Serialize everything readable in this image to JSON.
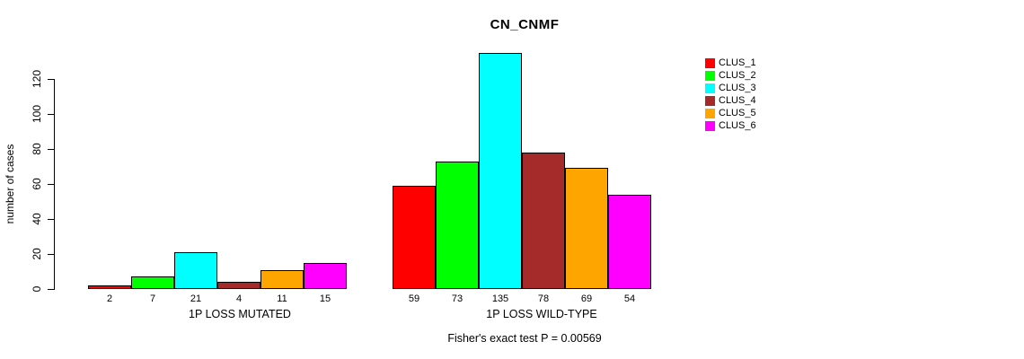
{
  "title": "CN_CNMF",
  "ylabel": "number of cases",
  "footer": "Fisher's exact test P = 0.00569",
  "chart_data": {
    "type": "bar",
    "title": "CN_CNMF",
    "ylabel": "number of cases",
    "xlabel": "",
    "yticks": [
      0,
      20,
      40,
      60,
      80,
      100,
      120
    ],
    "ylim": [
      0,
      140
    ],
    "grid": false,
    "legend_position": "right",
    "annotation": "Fisher's exact test P = 0.00569",
    "series": [
      "CLUS_1",
      "CLUS_2",
      "CLUS_3",
      "CLUS_4",
      "CLUS_5",
      "CLUS_6"
    ],
    "series_colors": [
      "#FF0000",
      "#00FF00",
      "#00FFFF",
      "#A52A2A",
      "#FFA500",
      "#FF00FF"
    ],
    "groups": [
      {
        "label": "1P LOSS MUTATED",
        "values": [
          2,
          7,
          21,
          4,
          11,
          15
        ]
      },
      {
        "label": "1P LOSS WILD-TYPE",
        "values": [
          59,
          73,
          135,
          78,
          69,
          54
        ]
      }
    ]
  }
}
